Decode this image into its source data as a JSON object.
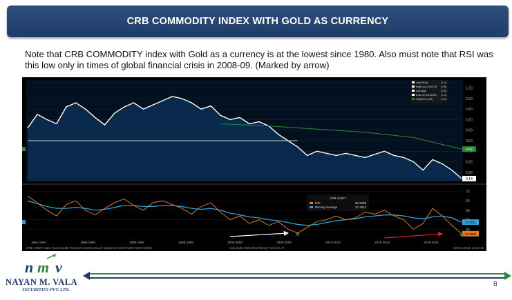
{
  "header": {
    "title": "CRB COMMODITY INDEX WITH GOLD AS CURRENCY"
  },
  "note": {
    "text": "Note that CRB COMMODITY index with Gold as a currency is at the lowest since 1980. Also must note that RSI was this low only in times of global financial crisis in 2008-09. (Marked by arrow)"
  },
  "footer": {
    "company": "NAYAN M. VALA",
    "subtitle": "SECURITIES PVT. LTD.",
    "page_number": "8"
  },
  "colors": {
    "title_bg": "#1f3c69",
    "price_line": "#ffffff",
    "price_fill": "#0a2a4d",
    "sma_line": "#2e8b3a",
    "rsi_line": "#e07b1a",
    "ma_line": "#2aa3d8",
    "arrow_white": "#ffffff",
    "arrow_red": "#e02020",
    "accent_green": "#2a8a3a",
    "accent_blue": "#1a3b73"
  },
  "chart_data": [
    {
      "type": "line",
      "panel": "price",
      "legend": [
        "Last Price",
        "High on 11/30/79",
        "Average",
        "Low on 09/30/25",
        "SMAVG (100)"
      ],
      "legend_values": [
        "0.14",
        "0.95",
        "0.55",
        "0.14",
        "0.42"
      ],
      "y_ticks": [
        "1.00",
        "0.90",
        "0.80",
        "0.70",
        "0.60",
        "0.50",
        "0.40",
        "0.30",
        "0.20"
      ],
      "y_tick_values": [
        1.0,
        0.9,
        0.8,
        0.7,
        0.6,
        0.5,
        0.4,
        0.3,
        0.2
      ],
      "right_labels": [
        "0.42",
        "0.14"
      ],
      "right_label_values": [
        0.42,
        0.14
      ],
      "ylim": [
        0.12,
        1.05
      ],
      "horizontal_line": 0.5,
      "x": [
        1980,
        1981,
        1982,
        1983,
        1984,
        1985,
        1986,
        1987,
        1988,
        1989,
        1990,
        1991,
        1992,
        1993,
        1994,
        1995,
        1996,
        1997,
        1998,
        1999,
        2000,
        2001,
        2002,
        2003,
        2004,
        2005,
        2006,
        2007,
        2008,
        2009,
        2010,
        2011,
        2012,
        2013,
        2014,
        2015,
        2016,
        2017,
        2018,
        2019,
        2020,
        2021,
        2022,
        2023,
        2024,
        2025
      ],
      "values": [
        0.62,
        0.75,
        0.7,
        0.66,
        0.82,
        0.86,
        0.8,
        0.72,
        0.65,
        0.76,
        0.82,
        0.86,
        0.8,
        0.84,
        0.88,
        0.92,
        0.9,
        0.86,
        0.8,
        0.83,
        0.74,
        0.7,
        0.72,
        0.66,
        0.68,
        0.64,
        0.56,
        0.5,
        0.44,
        0.36,
        0.4,
        0.38,
        0.36,
        0.38,
        0.36,
        0.34,
        0.37,
        0.4,
        0.36,
        0.34,
        0.3,
        0.22,
        0.32,
        0.28,
        0.22,
        0.14
      ],
      "sma_x": [
        2000,
        2005,
        2010,
        2015,
        2020,
        2025
      ],
      "sma_values": [
        0.66,
        0.64,
        0.61,
        0.58,
        0.53,
        0.42
      ]
    },
    {
      "type": "line",
      "panel": "rsi",
      "legend_title": "CRB CMDT",
      "legend": [
        "RSI",
        "Moving Average"
      ],
      "legend_values": [
        "25.2598",
        "37.4611"
      ],
      "y_ticks": [
        "70",
        "60",
        "50",
        "40",
        "30"
      ],
      "y_tick_values": [
        70,
        60,
        50,
        40,
        30
      ],
      "right_labels": [
        "37.4611",
        "25.2598"
      ],
      "right_label_values": [
        37.4611,
        25.2598
      ],
      "ylim": [
        20,
        74
      ],
      "x_ticks": [
        "1981-1984",
        "1985-1989",
        "1990-1994",
        "1995-1999",
        "2000-2004",
        "2005-2009",
        "2010-2014",
        "2015-2019",
        "2020-2024"
      ],
      "x": [
        1980,
        1981,
        1982,
        1983,
        1984,
        1985,
        1986,
        1987,
        1988,
        1989,
        1990,
        1991,
        1992,
        1993,
        1994,
        1995,
        1996,
        1997,
        1998,
        1999,
        2000,
        2001,
        2002,
        2003,
        2004,
        2005,
        2006,
        2007,
        2008,
        2009,
        2010,
        2011,
        2012,
        2013,
        2014,
        2015,
        2016,
        2017,
        2018,
        2019,
        2020,
        2021,
        2022,
        2023,
        2024,
        2025
      ],
      "rsi_values": [
        65,
        58,
        50,
        44,
        56,
        60,
        50,
        45,
        52,
        58,
        62,
        55,
        50,
        58,
        60,
        56,
        52,
        46,
        54,
        58,
        48,
        40,
        44,
        36,
        40,
        34,
        38,
        30,
        26,
        32,
        38,
        40,
        44,
        40,
        42,
        48,
        46,
        50,
        44,
        40,
        30,
        36,
        52,
        44,
        34,
        25.26
      ],
      "ma_values": [
        60,
        57,
        54,
        52,
        52,
        53,
        52,
        50,
        51,
        53,
        55,
        55,
        54,
        54,
        55,
        55,
        54,
        52,
        51,
        52,
        50,
        47,
        45,
        43,
        42,
        40,
        39,
        37,
        35,
        34,
        35,
        37,
        39,
        40,
        41,
        43,
        44,
        45,
        45,
        44,
        42,
        41,
        43,
        44,
        42,
        37.46
      ],
      "annotations": [
        {
          "type": "arrow",
          "color": "white",
          "from": 2001,
          "to": 2007
        },
        {
          "type": "arrow",
          "color": "red",
          "from": 2017,
          "to": 2023
        }
      ],
      "copyright": "Copyright 2025 Bloomberg Finance L.P.",
      "source": "CRB CMDT Index (Commodity Research Bureau BLS/) Quarterly 31OCT1995-03OCT2025",
      "date_stamp": "03-Oct-2025 12:14:19"
    }
  ]
}
